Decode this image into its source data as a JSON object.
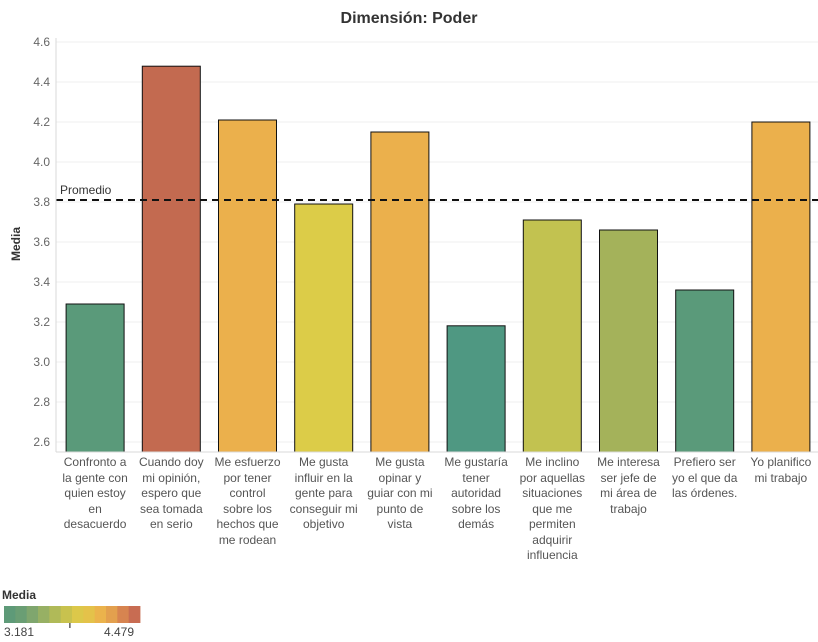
{
  "chart_data": {
    "type": "bar",
    "title": "Dimensión: Poder",
    "xlabel": "",
    "ylabel": "Media",
    "ylim": [
      2.55,
      4.62
    ],
    "yticks": [
      2.6,
      2.8,
      3.0,
      3.2,
      3.4,
      3.6,
      3.8,
      4.0,
      4.2,
      4.4,
      4.6
    ],
    "grid": true,
    "categories": [
      "Confronto a\nla gente con\nquien estoy\nen\ndesacuerdo",
      "Cuando doy\nmi opinión,\nespero que\nsea tomada\nen serio",
      "Me esfuerzo\npor tener\ncontrol\nsobre los\nhechos que\nme rodean",
      "Me gusta\ninfluir en la\ngente para\nconseguir mi\nobjetivo",
      "Me gusta\nopinar y\nguiar con mi\npunto de\nvista",
      "Me gustaría\ntener\nautoridad\nsobre los\ndemás",
      "Me inclino\npor aquellas\nsituaciones\nque me\npermiten\nadquirir\ninfluencia",
      "Me interesa\nser jefe de\nmi área de\ntrabajo",
      "Prefiero ser\nyo el que da\nlas órdenes.",
      "Yo planifico\nmi trabajo"
    ],
    "values": [
      3.29,
      4.479,
      4.21,
      3.79,
      4.15,
      3.181,
      3.71,
      3.66,
      3.36,
      4.2
    ],
    "colors": [
      "#5a9a7a",
      "#c36a50",
      "#ebb04c",
      "#dccc48",
      "#ebb04c",
      "#4f9882",
      "#c2c250",
      "#a4b25a",
      "#5a9a7a",
      "#ebb04c"
    ],
    "reference_line": {
      "label": "Promedio",
      "value": 3.81
    },
    "legend": {
      "title": "Media",
      "min_label": "3.181",
      "max_label": "4.479",
      "min": 3.181,
      "max": 4.479,
      "marker_value": 3.81,
      "colors": [
        "#5e9a78",
        "#6a9e74",
        "#7fa66e",
        "#97b064",
        "#b0ba58",
        "#c8c24e",
        "#dcc84a",
        "#e4c24a",
        "#ebb34c",
        "#e3a04e",
        "#d78450",
        "#c86c52"
      ]
    }
  }
}
